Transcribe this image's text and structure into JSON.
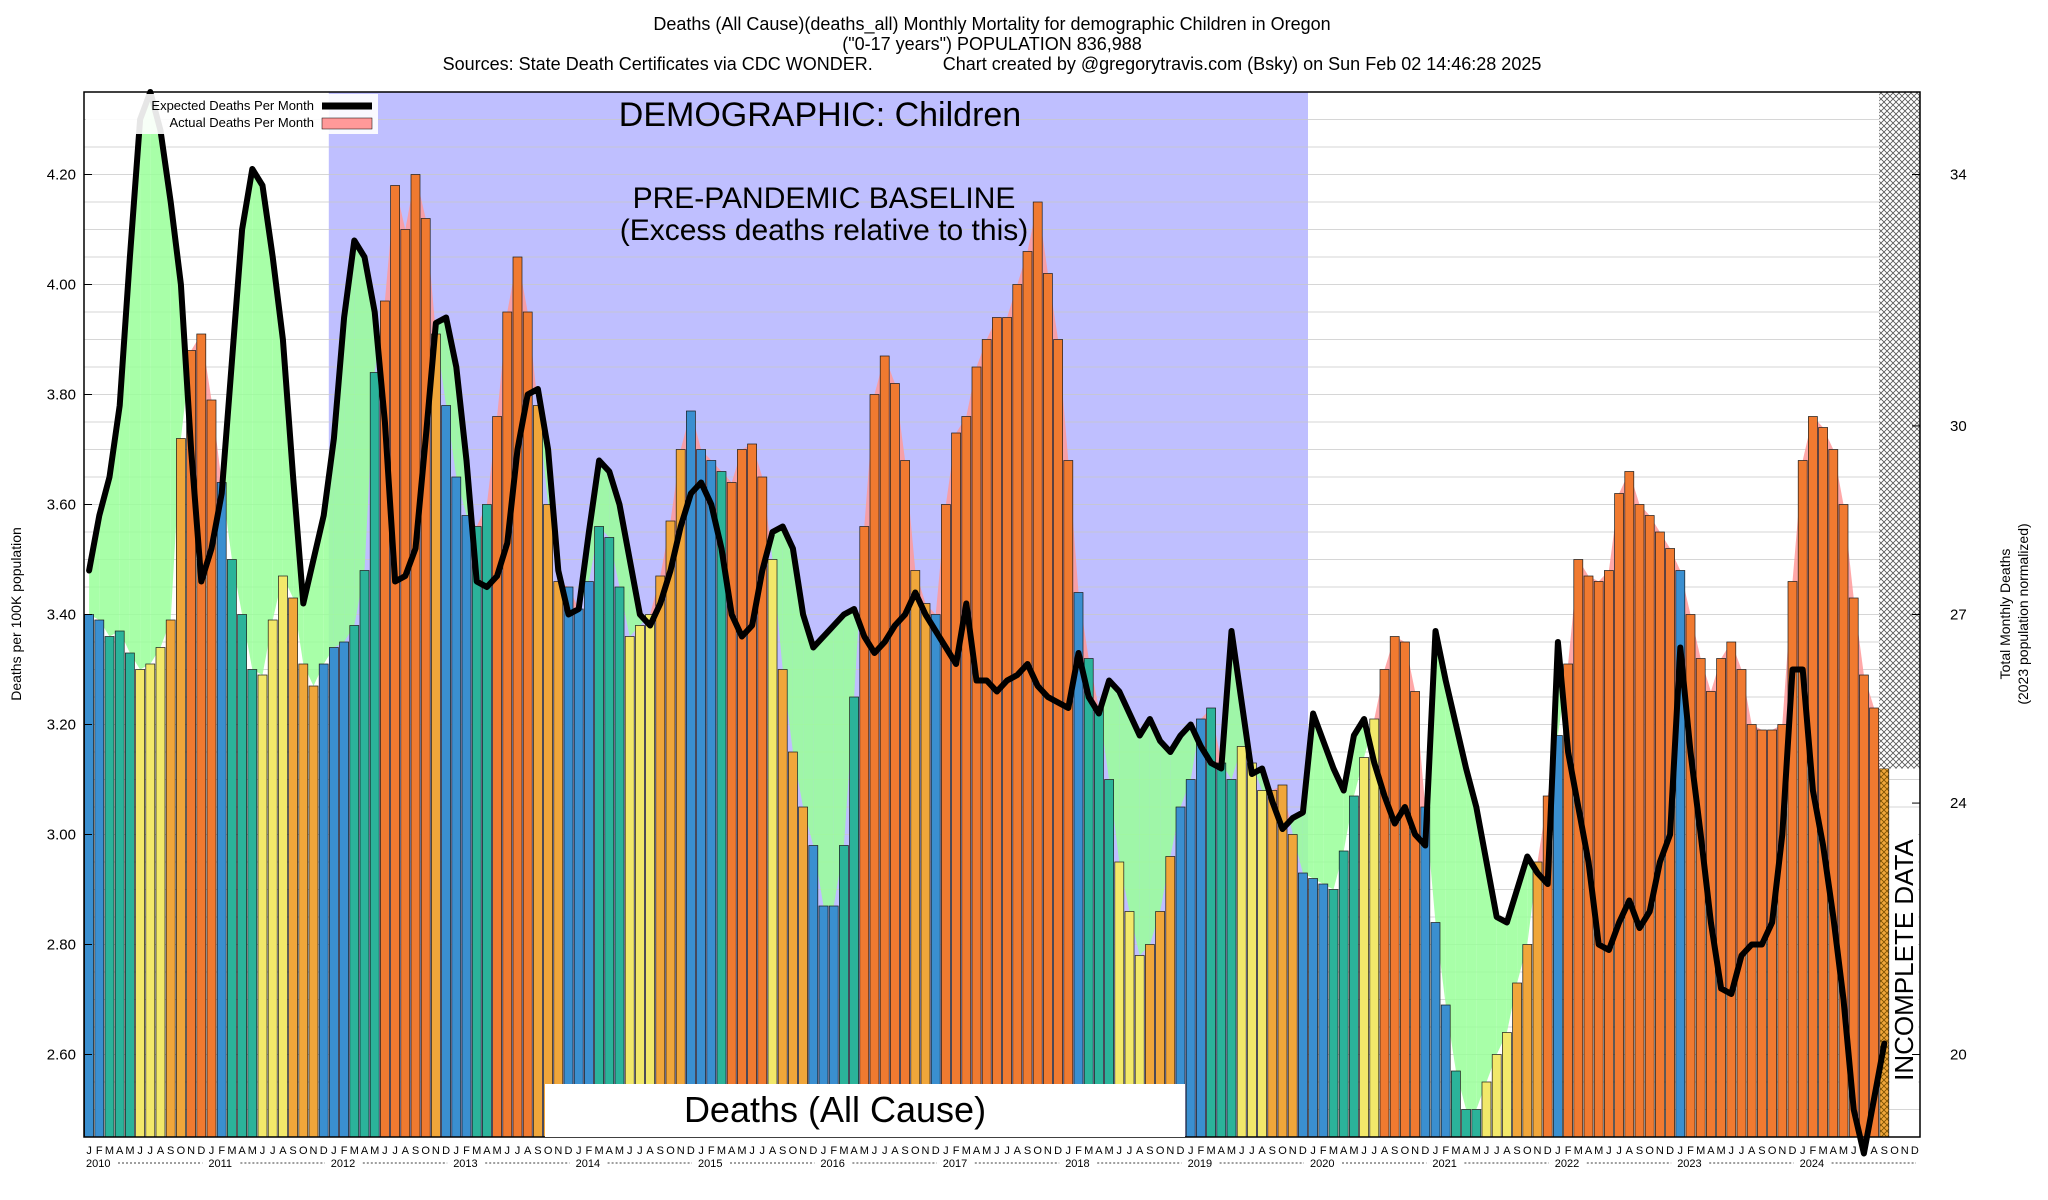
{
  "title": {
    "line1": "Deaths (All Cause)(deaths_all) Monthly Mortality for demographic Children in Oregon",
    "line2": "(\"0-17 years\") POPULATION 836,988",
    "line3": "Sources: State Death Certificates via CDC WONDER.              Chart created by @gregorytravis.com (Bsky) on Sun Feb 02 14:46:28 2025"
  },
  "annotations": {
    "demographic": "DEMOGRAPHIC: Children",
    "baseline_line1": "PRE-PANDEMIC BASELINE",
    "baseline_line2": "(Excess deaths relative to this)",
    "cause_box": "Deaths (All Cause)",
    "incomplete": "INCOMPLETE DATA"
  },
  "legend": {
    "expected": "Expected Deaths Per Month",
    "actual": "Actual Deaths Per Month"
  },
  "colors": {
    "baseline_band": "#bfbfff",
    "deficit_fill": "#99ff99",
    "excess_fill": "#ff9999",
    "expected_line": "#000000",
    "bar_winter": "#3a8fd0",
    "bar_spring": "#2bb39a",
    "bar_summer": "#f2e86a",
    "bar_fall": "#f0a63a",
    "bar_excess": "#f07a30"
  },
  "chart_data": {
    "type": "bar",
    "title": "Deaths (All Cause)(deaths_all) Monthly Mortality for demographic Children in Oregon",
    "ylabel": "Deaths per 100K population",
    "y2label_line1": "Total Monthly Deaths",
    "y2label_line2": "(2023 population normalized)",
    "ylim": [
      2.45,
      4.35
    ],
    "yticks": [
      2.6,
      2.8,
      3.0,
      3.2,
      3.4,
      3.6,
      3.8,
      4.0,
      4.2
    ],
    "ytick_labels": [
      "2.60",
      "2.80",
      "3.00",
      "3.20",
      "3.40",
      "3.60",
      "3.80",
      "4.00",
      "4.20"
    ],
    "y2ticks": [
      20,
      24,
      27,
      30,
      34
    ],
    "month_letters": [
      "J",
      "F",
      "M",
      "A",
      "M",
      "J",
      "J",
      "A",
      "S",
      "O",
      "N",
      "D"
    ],
    "years": [
      "2010",
      "2011",
      "2012",
      "2013",
      "2014",
      "2015",
      "2016",
      "2017",
      "2018",
      "2019",
      "2020",
      "2021",
      "2022",
      "2023",
      "2024"
    ],
    "baseline_period": [
      "2012-01",
      "2019-12"
    ],
    "incomplete_from_month_index": 176,
    "series": [
      {
        "name": "Actual Deaths Per Month",
        "values": [
          3.4,
          3.39,
          3.36,
          3.37,
          3.33,
          3.3,
          3.31,
          3.34,
          3.39,
          3.72,
          3.88,
          3.91,
          3.79,
          3.64,
          3.5,
          3.4,
          3.3,
          3.29,
          3.39,
          3.47,
          3.43,
          3.31,
          3.27,
          3.31,
          3.34,
          3.35,
          3.38,
          3.48,
          3.84,
          3.97,
          4.18,
          4.1,
          4.2,
          4.12,
          3.91,
          3.78,
          3.65,
          3.58,
          3.56,
          3.6,
          3.76,
          3.95,
          4.05,
          3.95,
          3.78,
          3.6,
          3.46,
          3.45,
          3.41,
          3.46,
          3.56,
          3.54,
          3.45,
          3.36,
          3.38,
          3.4,
          3.47,
          3.57,
          3.7,
          3.77,
          3.7,
          3.68,
          3.66,
          3.64,
          3.7,
          3.71,
          3.65,
          3.5,
          3.3,
          3.15,
          3.05,
          2.98,
          2.87,
          2.87,
          2.98,
          3.25,
          3.56,
          3.8,
          3.87,
          3.82,
          3.68,
          3.48,
          3.42,
          3.4,
          3.6,
          3.73,
          3.76,
          3.85,
          3.9,
          3.94,
          3.94,
          4.0,
          4.06,
          4.15,
          4.02,
          3.9,
          3.68,
          3.44,
          3.32,
          3.23,
          3.1,
          2.95,
          2.86,
          2.78,
          2.8,
          2.86,
          2.96,
          3.05,
          3.1,
          3.21,
          3.23,
          3.13,
          3.1,
          3.16,
          3.13,
          3.08,
          3.08,
          3.09,
          3.0,
          2.93,
          2.92,
          2.91,
          2.9,
          2.97,
          3.07,
          3.14,
          3.21,
          3.3,
          3.36,
          3.35,
          3.26,
          3.05,
          2.84,
          2.69,
          2.57,
          2.5,
          2.5,
          2.55,
          2.6,
          2.64,
          2.73,
          2.8,
          2.95,
          3.07,
          3.18,
          3.31,
          3.5,
          3.47,
          3.46,
          3.48,
          3.62,
          3.66,
          3.6,
          3.58,
          3.55,
          3.52,
          3.48,
          3.4,
          3.32,
          3.26,
          3.32,
          3.35,
          3.3,
          3.2,
          3.19,
          3.19,
          3.2,
          3.46,
          3.68,
          3.76,
          3.74,
          3.7,
          3.6,
          3.43,
          3.29,
          3.23,
          3.12
        ]
      },
      {
        "name": "Expected Deaths Per Month",
        "values": [
          3.48,
          3.58,
          3.65,
          3.78,
          4.05,
          4.3,
          4.35,
          4.28,
          4.15,
          4.0,
          3.7,
          3.46,
          3.52,
          3.62,
          3.86,
          4.1,
          4.21,
          4.18,
          4.05,
          3.9,
          3.65,
          3.42,
          3.5,
          3.58,
          3.72,
          3.94,
          4.08,
          4.05,
          3.95,
          3.75,
          3.46,
          3.47,
          3.52,
          3.72,
          3.93,
          3.94,
          3.85,
          3.68,
          3.46,
          3.45,
          3.47,
          3.53,
          3.7,
          3.8,
          3.81,
          3.7,
          3.48,
          3.4,
          3.41,
          3.55,
          3.68,
          3.66,
          3.6,
          3.5,
          3.4,
          3.38,
          3.42,
          3.48,
          3.56,
          3.62,
          3.64,
          3.6,
          3.52,
          3.4,
          3.36,
          3.38,
          3.48,
          3.55,
          3.56,
          3.52,
          3.4,
          3.34,
          3.36,
          3.38,
          3.4,
          3.41,
          3.36,
          3.33,
          3.35,
          3.38,
          3.4,
          3.44,
          3.4,
          3.37,
          3.34,
          3.31,
          3.42,
          3.28,
          3.28,
          3.26,
          3.28,
          3.29,
          3.31,
          3.27,
          3.25,
          3.24,
          3.23,
          3.33,
          3.25,
          3.22,
          3.28,
          3.26,
          3.22,
          3.18,
          3.21,
          3.17,
          3.15,
          3.18,
          3.2,
          3.16,
          3.13,
          3.12,
          3.37,
          3.24,
          3.11,
          3.12,
          3.06,
          3.01,
          3.03,
          3.04,
          3.22,
          3.17,
          3.12,
          3.08,
          3.18,
          3.21,
          3.13,
          3.07,
          3.02,
          3.05,
          3.0,
          2.98,
          3.37,
          3.28,
          3.2,
          3.12,
          3.05,
          2.95,
          2.85,
          2.84,
          2.9,
          2.96,
          2.93,
          2.91,
          3.35,
          3.15,
          3.05,
          2.95,
          2.8,
          2.79,
          2.84,
          2.88,
          2.83,
          2.86,
          2.95,
          3.0,
          3.34,
          3.15,
          3.0,
          2.84,
          2.72,
          2.71,
          2.78,
          2.8,
          2.8,
          2.84,
          3.0,
          3.3,
          3.3,
          3.08,
          2.98,
          2.85,
          2.7,
          2.5,
          2.42,
          2.52,
          2.62
        ]
      }
    ]
  }
}
